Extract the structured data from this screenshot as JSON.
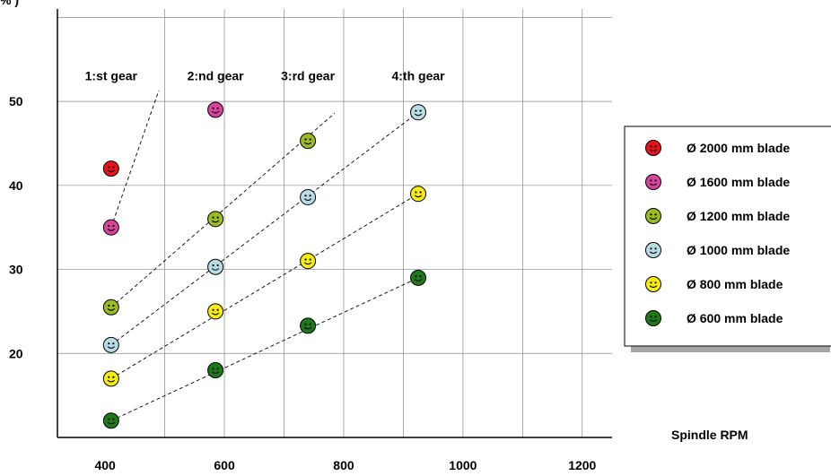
{
  "chart_data": {
    "type": "scatter",
    "title": "",
    "ylabel_fragment": "% )",
    "xlabel": "Spindle RPM",
    "xlim": [
      320,
      1250
    ],
    "ylim": [
      10,
      61
    ],
    "x_ticks": [
      400,
      600,
      800,
      1000,
      1200
    ],
    "y_ticks": [
      20,
      30,
      40,
      50
    ],
    "grid": true,
    "legend_position": "right",
    "gear_labels": [
      {
        "text": "1:st gear",
        "x": 410,
        "y": 52.5
      },
      {
        "text": "2:nd gear",
        "x": 585,
        "y": 52.5
      },
      {
        "text": "3:rd gear",
        "x": 740,
        "y": 52.5
      },
      {
        "text": "4:th gear",
        "x": 925,
        "y": 52.5
      }
    ],
    "gear_lines": [
      {
        "x": [
          410,
          490
        ],
        "y": [
          35,
          51.3
        ]
      },
      {
        "x": [
          410,
          785
        ],
        "y": [
          25.5,
          48.6
        ]
      },
      {
        "x": [
          410,
          925
        ],
        "y": [
          21,
          48.7
        ]
      },
      {
        "x": [
          410,
          925
        ],
        "y": [
          17,
          39
        ]
      },
      {
        "x": [
          410,
          925
        ],
        "y": [
          12,
          29
        ]
      }
    ],
    "series": [
      {
        "name": "Ø 2000 mm blade",
        "color": "#e8141c",
        "x": [
          410
        ],
        "y": [
          42
        ]
      },
      {
        "name": "Ø 1600 mm blade",
        "color": "#d8449c",
        "x": [
          410,
          585
        ],
        "y": [
          35,
          49
        ]
      },
      {
        "name": "Ø 1200 mm blade",
        "color": "#9abb22",
        "x": [
          410,
          585,
          740
        ],
        "y": [
          25.5,
          36,
          45.3
        ]
      },
      {
        "name": "Ø 1000 mm blade",
        "color": "#b8dce4",
        "x": [
          410,
          585,
          740,
          925
        ],
        "y": [
          21,
          30.3,
          38.6,
          48.7
        ]
      },
      {
        "name": "Ø 800 mm blade",
        "color": "#f6ec14",
        "x": [
          410,
          585,
          740,
          925
        ],
        "y": [
          17,
          25,
          31,
          39
        ]
      },
      {
        "name": "Ø 600 mm blade",
        "color": "#1e7a18",
        "x": [
          410,
          585,
          740,
          925
        ],
        "y": [
          12,
          18,
          23.3,
          29
        ]
      }
    ]
  }
}
